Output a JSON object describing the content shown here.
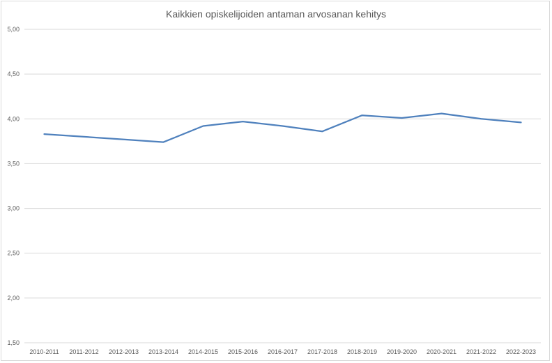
{
  "chart_data": {
    "type": "line",
    "title": "Kaikkien opiskelijoiden antaman arvosanan kehitys",
    "xlabel": "",
    "ylabel": "",
    "categories": [
      "2010-2011",
      "2011-2012",
      "2012-2013",
      "2013-2014",
      "2014-2015",
      "2015-2016",
      "2016-2017",
      "2017-2018",
      "2018-2019",
      "2019-2020",
      "2020-2021",
      "2021-2022",
      "2022-2023"
    ],
    "series": [
      {
        "values": [
          3.83,
          3.8,
          3.77,
          3.74,
          3.92,
          3.97,
          3.92,
          3.86,
          4.04,
          4.01,
          4.06,
          4.0,
          3.96
        ]
      }
    ],
    "ylim": [
      1.5,
      5.0
    ],
    "yticks": [
      "1,50",
      "2,00",
      "2,50",
      "3,00",
      "3,50",
      "4,00",
      "4,50",
      "5,00"
    ],
    "ytick_values": [
      1.5,
      2.0,
      2.5,
      3.0,
      3.5,
      4.0,
      4.5,
      5.0
    ],
    "grid": true,
    "legend": "none",
    "colors": {
      "line": "#4f81bd",
      "grid": "#d9d9d9",
      "text": "#595959"
    }
  }
}
